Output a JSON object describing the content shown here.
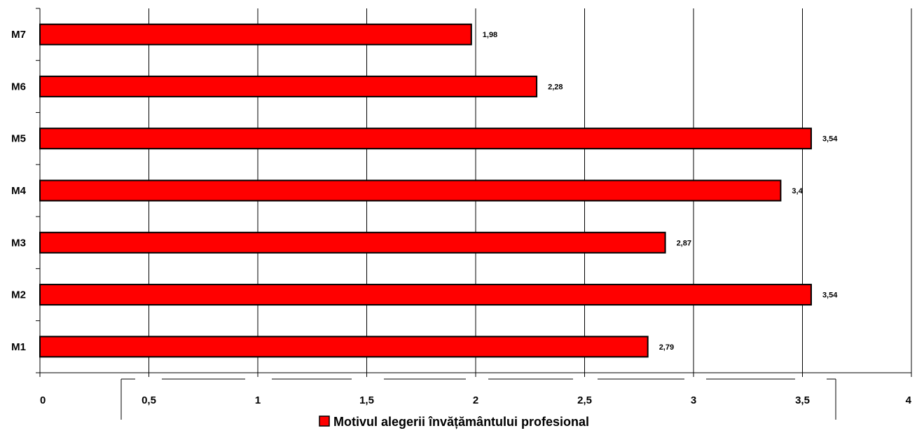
{
  "chart_data": {
    "type": "bar",
    "orientation": "horizontal",
    "categories": [
      "M1",
      "M2",
      "M3",
      "M4",
      "M5",
      "M6",
      "M7"
    ],
    "series": [
      {
        "name": "Motivul alegerii învățământului profesional",
        "values": [
          2.79,
          3.54,
          2.87,
          3.4,
          3.54,
          2.28,
          1.98
        ],
        "labels": [
          "2,79",
          "3,54",
          "2,87",
          "3,4",
          "3,54",
          "2,28",
          "1,98"
        ],
        "color": "#ff0000"
      }
    ],
    "xlim": [
      0,
      4
    ],
    "xticks": [
      0,
      0.5,
      1,
      1.5,
      2,
      2.5,
      3,
      3.5,
      4
    ],
    "xtick_labels": [
      "0",
      "0,5",
      "1",
      "1,5",
      "2",
      "2,5",
      "3",
      "3,5",
      "4"
    ],
    "title": "",
    "xlabel": "",
    "ylabel": "",
    "grid": "vertical",
    "legend_position": "bottom"
  }
}
